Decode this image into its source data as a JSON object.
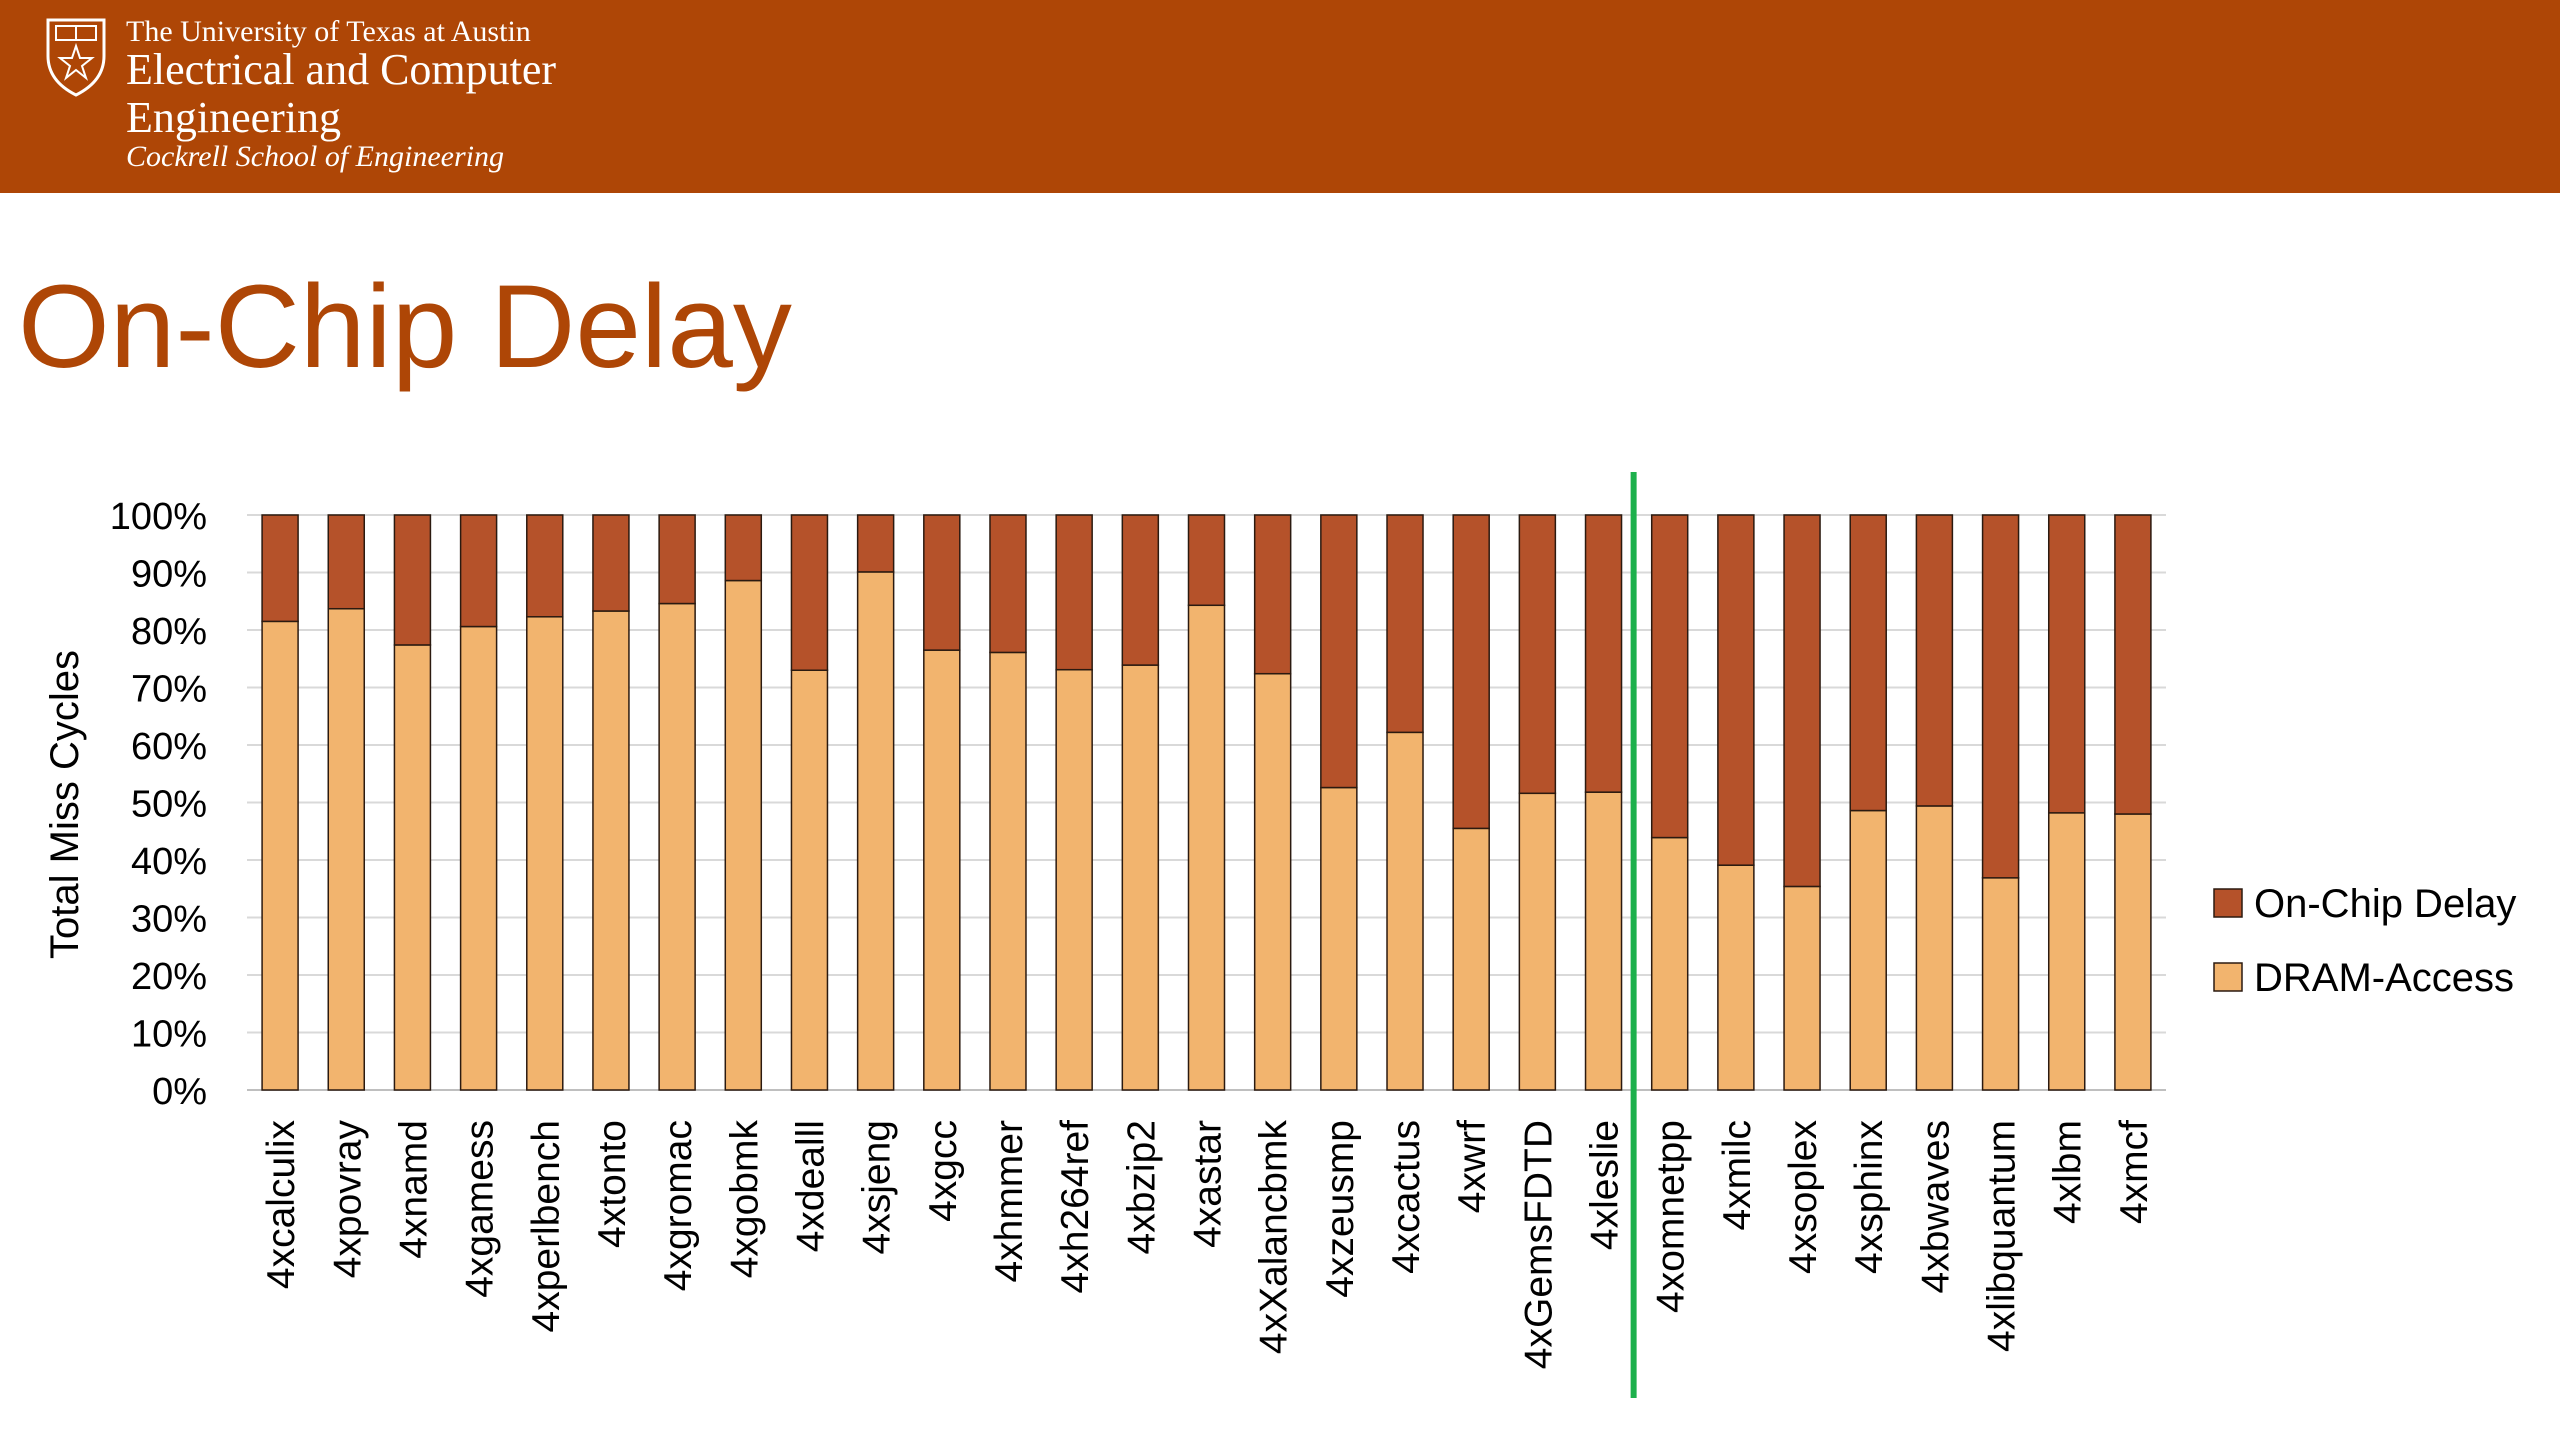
{
  "header": {
    "university": "The University of Texas at Austin",
    "department": "Electrical and Computer Engineering",
    "school": "Cockrell School of Engineering"
  },
  "slide": {
    "title": "On-Chip Delay"
  },
  "colors": {
    "banner": "#AE4606",
    "title": "#AE4606",
    "on_chip_delay": "#B5522A",
    "dram_access": "#F2B46E",
    "divider_line": "#1DB04C"
  },
  "chart_data": {
    "type": "bar",
    "stacked": true,
    "ylabel": "Total Miss Cycles",
    "xlabel": "",
    "ylim": [
      0,
      100
    ],
    "yticks": [
      "0%",
      "10%",
      "20%",
      "30%",
      "40%",
      "50%",
      "60%",
      "70%",
      "80%",
      "90%",
      "100%"
    ],
    "grid": true,
    "legend_position": "right",
    "divider_after_category": "4xleslie",
    "categories": [
      "4xcalculix",
      "4xpovray",
      "4xnamd",
      "4xgamess",
      "4xperlbench",
      "4xtonto",
      "4xgromac",
      "4xgobmk",
      "4xdealll",
      "4xsjeng",
      "4xgcc",
      "4xhmmer",
      "4xh264ref",
      "4xbzip2",
      "4xastar",
      "4xXalancbmk",
      "4xzeusmp",
      "4xcactus",
      "4xwrf",
      "4xGemsFDTD",
      "4xleslie",
      "4xomnetpp",
      "4xmilc",
      "4xsoplex",
      "4xsphinx",
      "4xbwaves",
      "4xlibquantum",
      "4xlbm",
      "4xmcf"
    ],
    "series": [
      {
        "name": "DRAM-Access",
        "color": "#F2B46E",
        "values": [
          81.5,
          83.7,
          77.4,
          80.6,
          82.3,
          83.3,
          84.6,
          88.6,
          73.0,
          90.1,
          76.5,
          76.1,
          73.1,
          73.9,
          84.3,
          72.4,
          52.6,
          62.2,
          45.5,
          51.6,
          51.8,
          43.9,
          39.1,
          35.4,
          48.6,
          49.4,
          36.9,
          48.2,
          48.0
        ]
      },
      {
        "name": "On-Chip Delay",
        "color": "#B5522A",
        "values": [
          18.5,
          16.3,
          22.6,
          19.4,
          17.7,
          16.7,
          15.4,
          11.4,
          27.0,
          9.9,
          23.5,
          23.9,
          26.9,
          26.1,
          15.7,
          27.6,
          47.4,
          37.8,
          54.5,
          48.4,
          48.2,
          56.1,
          60.9,
          64.6,
          51.4,
          50.6,
          63.1,
          51.8,
          52.0
        ]
      }
    ]
  }
}
